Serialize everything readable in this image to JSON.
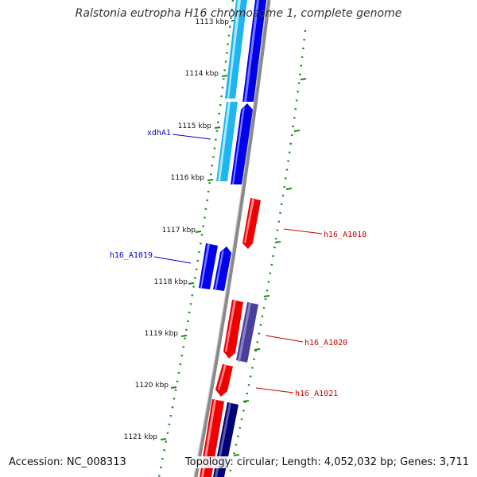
{
  "title": "Ralstonia eutropha H16 chromosome 1, complete genome",
  "footer": {
    "accession": "Accession: NC_008313",
    "summary": "Topology: circular; Length: 4,052,032 bp; Genes: 3,711"
  },
  "colors": {
    "backbone": "#8a8a8a",
    "tick": "#1a8a1a",
    "forward_dark": "#0000ee",
    "forward_light": "#1fb6ee",
    "reverse_red": "#ee0000",
    "purple": "#4a3f9a",
    "navy": "#000077",
    "label_blue": "#0000cc",
    "label_red": "#cc0000"
  },
  "ticks": [
    {
      "label": "1113 kbp",
      "partial": true
    },
    {
      "label": "1114 kbp"
    },
    {
      "label": "1115 kbp"
    },
    {
      "label": "1116 kbp"
    },
    {
      "label": "1117 kbp"
    },
    {
      "label": "1118 kbp"
    },
    {
      "label": "1119 kbp"
    },
    {
      "label": "1120 kbp"
    },
    {
      "label": "1121 kbp"
    }
  ],
  "gene_labels": [
    {
      "name": "xdhA1",
      "side": "left",
      "color": "label_blue"
    },
    {
      "name": "h16_A1019",
      "side": "left",
      "color": "label_blue"
    },
    {
      "name": "h16_A1018",
      "side": "right",
      "color": "label_red"
    },
    {
      "name": "h16_A1020",
      "side": "right",
      "color": "label_red"
    },
    {
      "name": "h16_A1021",
      "side": "right",
      "color": "label_red"
    }
  ]
}
